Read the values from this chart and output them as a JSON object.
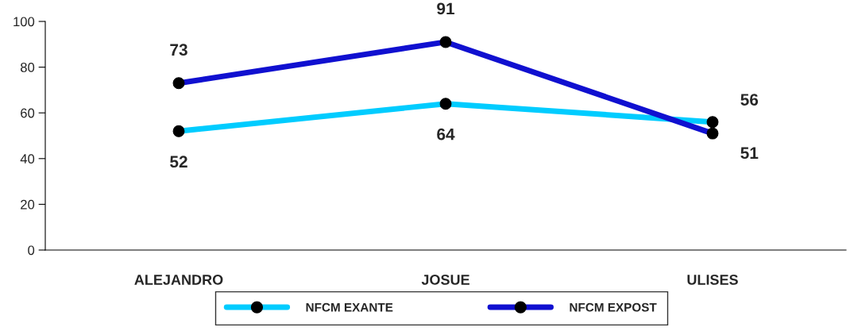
{
  "chart_data": {
    "type": "line",
    "categories": [
      "ALEJANDRO",
      "JOSUE",
      "ULISES"
    ],
    "series": [
      {
        "name": "NFCM EXANTE",
        "color": "#00ccff",
        "values": [
          52,
          64,
          56
        ]
      },
      {
        "name": "NFCM EXPOST",
        "color": "#1010d0",
        "values": [
          73,
          91,
          51
        ]
      }
    ],
    "ylim": [
      0,
      100
    ],
    "yticks": [
      0,
      20,
      40,
      60,
      80,
      100
    ],
    "grid": false,
    "legend": "bottom",
    "marker": "circle",
    "line_style": "solid",
    "data_labels": true
  }
}
